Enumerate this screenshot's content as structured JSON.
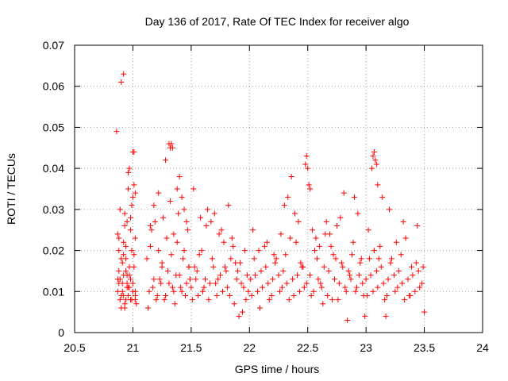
{
  "chart_data": {
    "type": "scatter",
    "title": "Day 136 of 2017, Rate Of TEC Index for receiver algo",
    "xlabel": "GPS time / hours",
    "ylabel": "ROTI / TECUs",
    "xlim": [
      20.5,
      24
    ],
    "ylim": [
      0,
      0.07
    ],
    "x_ticks": [
      "20.5",
      "21",
      "21.5",
      "22",
      "22.5",
      "23",
      "23.5",
      "24"
    ],
    "y_ticks": [
      "0",
      "0.01",
      "0.02",
      "0.03",
      "0.04",
      "0.05",
      "0.06",
      "0.07"
    ],
    "grid": true,
    "marker": "+",
    "color": "#ff0000",
    "series": [
      {
        "x": [
          20.88,
          20.89,
          20.9,
          20.91,
          20.92,
          20.93,
          20.94,
          20.95,
          20.96,
          20.97,
          20.98,
          20.99,
          21.0,
          21.01,
          21.02,
          21.03,
          20.87,
          20.88,
          20.89,
          20.9,
          20.91,
          20.92,
          20.93,
          20.94,
          20.95,
          20.96,
          20.97,
          20.98,
          20.99,
          21.0,
          21.01,
          21.02,
          20.86,
          20.88,
          20.9,
          20.92,
          20.94,
          20.96,
          20.98,
          21.0,
          21.02,
          20.87,
          20.89,
          20.91,
          20.93,
          20.95,
          20.97,
          20.99,
          21.01,
          20.87,
          20.88,
          20.92,
          20.93,
          20.94,
          20.96,
          20.97,
          21.01,
          21.02,
          20.9,
          20.92,
          20.95,
          20.98,
          21.0,
          21.02,
          21.12,
          21.14,
          21.16,
          21.18,
          21.2,
          21.22,
          21.24,
          21.26,
          21.28,
          21.3,
          21.32,
          21.34,
          21.36,
          21.38,
          21.4,
          21.42,
          21.44,
          21.46,
          21.48,
          21.13,
          21.15,
          21.17,
          21.19,
          21.21,
          21.23,
          21.25,
          21.27,
          21.29,
          21.31,
          21.33,
          21.35,
          21.37,
          21.39,
          21.41,
          21.43,
          21.45,
          21.47,
          21.49,
          21.15,
          21.18,
          21.22,
          21.25,
          21.28,
          21.31,
          21.32,
          21.33,
          21.34,
          21.35,
          21.38,
          21.4,
          21.42,
          21.44,
          21.46,
          21.48,
          21.5,
          21.53,
          21.56,
          21.59,
          21.62,
          21.65,
          21.68,
          21.71,
          21.74,
          21.77,
          21.8,
          21.83,
          21.86,
          21.89,
          21.92,
          21.95,
          21.98,
          21.51,
          21.54,
          21.57,
          21.6,
          21.63,
          21.66,
          21.69,
          21.72,
          21.75,
          21.78,
          21.81,
          21.84,
          21.87,
          21.9,
          21.93,
          21.96,
          21.99,
          21.52,
          21.58,
          21.64,
          21.7,
          21.76,
          21.82,
          21.88,
          21.94,
          21.55,
          21.61,
          21.67,
          21.73,
          21.79,
          21.85,
          21.91,
          21.97,
          22.01,
          22.04,
          22.07,
          22.1,
          22.13,
          22.16,
          22.19,
          22.22,
          22.25,
          22.28,
          22.31,
          22.34,
          22.37,
          22.4,
          22.43,
          22.46,
          22.49,
          22.02,
          22.05,
          22.08,
          22.11,
          22.14,
          22.17,
          22.2,
          22.23,
          22.26,
          22.29,
          22.32,
          22.35,
          22.38,
          22.41,
          22.44,
          22.47,
          22.03,
          22.09,
          22.15,
          22.21,
          22.27,
          22.33,
          22.39,
          22.45,
          22.48,
          22.49,
          22.5,
          22.51,
          22.52,
          22.3,
          22.36,
          22.42,
          22.52,
          22.55,
          22.58,
          22.61,
          22.64,
          22.67,
          22.7,
          22.73,
          22.76,
          22.79,
          22.82,
          22.85,
          22.88,
          22.91,
          22.94,
          22.97,
          22.53,
          22.56,
          22.59,
          22.62,
          22.65,
          22.68,
          22.71,
          22.74,
          22.77,
          22.8,
          22.83,
          22.86,
          22.89,
          22.92,
          22.95,
          22.98,
          22.54,
          22.6,
          22.66,
          22.72,
          22.78,
          22.84,
          22.9,
          22.96,
          22.57,
          22.63,
          22.69,
          22.75,
          22.81,
          22.87,
          22.93,
          22.99,
          23.0,
          23.03,
          23.06,
          23.09,
          23.12,
          23.15,
          23.18,
          23.21,
          23.24,
          23.27,
          23.3,
          23.33,
          23.36,
          23.39,
          23.42,
          23.45,
          23.48,
          23.01,
          23.04,
          23.07,
          23.1,
          23.13,
          23.16,
          23.19,
          23.22,
          23.25,
          23.28,
          23.31,
          23.34,
          23.37,
          23.4,
          23.43,
          23.46,
          23.49,
          23.05,
          23.06,
          23.07,
          23.08,
          23.09,
          23.1,
          23.02,
          23.14,
          23.2,
          23.26,
          23.32,
          23.38,
          23.44,
          23.5,
          23.11,
          23.17
        ],
        "y": [
          0.012,
          0.008,
          0.018,
          0.01,
          0.014,
          0.007,
          0.021,
          0.011,
          0.009,
          0.016,
          0.013,
          0.008,
          0.012,
          0.019,
          0.01,
          0.007,
          0.024,
          0.015,
          0.03,
          0.009,
          0.012,
          0.022,
          0.006,
          0.018,
          0.027,
          0.011,
          0.014,
          0.008,
          0.02,
          0.033,
          0.016,
          0.009,
          0.049,
          0.023,
          0.061,
          0.063,
          0.008,
          0.039,
          0.025,
          0.044,
          0.034,
          0.01,
          0.013,
          0.017,
          0.029,
          0.012,
          0.04,
          0.031,
          0.044,
          0.013,
          0.02,
          0.009,
          0.026,
          0.015,
          0.035,
          0.011,
          0.036,
          0.023,
          0.006,
          0.019,
          0.014,
          0.028,
          0.01,
          0.008,
          0.018,
          0.01,
          0.025,
          0.013,
          0.008,
          0.02,
          0.012,
          0.028,
          0.009,
          0.015,
          0.032,
          0.011,
          0.007,
          0.022,
          0.014,
          0.01,
          0.03,
          0.012,
          0.016,
          0.006,
          0.021,
          0.011,
          0.027,
          0.009,
          0.013,
          0.017,
          0.008,
          0.023,
          0.012,
          0.019,
          0.01,
          0.014,
          0.029,
          0.011,
          0.018,
          0.009,
          0.025,
          0.013,
          0.026,
          0.031,
          0.034,
          0.016,
          0.042,
          0.046,
          0.045,
          0.046,
          0.045,
          0.024,
          0.035,
          0.038,
          0.033,
          0.02,
          0.027,
          0.016,
          0.011,
          0.016,
          0.009,
          0.02,
          0.013,
          0.008,
          0.018,
          0.012,
          0.024,
          0.01,
          0.015,
          0.009,
          0.021,
          0.013,
          0.017,
          0.011,
          0.014,
          0.008,
          0.013,
          0.019,
          0.01,
          0.026,
          0.012,
          0.016,
          0.009,
          0.014,
          0.022,
          0.011,
          0.018,
          0.007,
          0.015,
          0.012,
          0.02,
          0.01,
          0.035,
          0.028,
          0.03,
          0.029,
          0.025,
          0.031,
          0.017,
          0.005,
          0.015,
          0.011,
          0.027,
          0.013,
          0.016,
          0.023,
          0.004,
          0.008,
          0.013,
          0.018,
          0.01,
          0.015,
          0.021,
          0.012,
          0.009,
          0.017,
          0.014,
          0.011,
          0.019,
          0.008,
          0.013,
          0.022,
          0.01,
          0.016,
          0.012,
          0.009,
          0.014,
          0.02,
          0.011,
          0.016,
          0.008,
          0.013,
          0.018,
          0.01,
          0.015,
          0.012,
          0.023,
          0.009,
          0.014,
          0.017,
          0.011,
          0.025,
          0.006,
          0.022,
          0.019,
          0.024,
          0.033,
          0.029,
          0.016,
          0.041,
          0.043,
          0.04,
          0.036,
          0.035,
          0.031,
          0.038,
          0.027,
          0.014,
          0.01,
          0.018,
          0.012,
          0.016,
          0.009,
          0.021,
          0.013,
          0.008,
          0.017,
          0.011,
          0.015,
          0.019,
          0.01,
          0.014,
          0.012,
          0.009,
          0.02,
          0.013,
          0.011,
          0.024,
          0.015,
          0.008,
          0.018,
          0.012,
          0.016,
          0.01,
          0.014,
          0.022,
          0.011,
          0.017,
          0.009,
          0.025,
          0.021,
          0.027,
          0.019,
          0.028,
          0.003,
          0.033,
          0.018,
          0.023,
          0.007,
          0.024,
          0.026,
          0.034,
          0.013,
          0.029,
          0.004,
          0.013,
          0.018,
          0.01,
          0.015,
          0.021,
          0.012,
          0.009,
          0.017,
          0.014,
          0.011,
          0.019,
          0.008,
          0.013,
          0.016,
          0.01,
          0.015,
          0.012,
          0.009,
          0.014,
          0.02,
          0.011,
          0.016,
          0.008,
          0.013,
          0.018,
          0.01,
          0.015,
          0.012,
          0.023,
          0.009,
          0.014,
          0.017,
          0.011,
          0.016,
          0.04,
          0.043,
          0.044,
          0.042,
          0.041,
          0.036,
          0.025,
          0.033,
          0.03,
          0.022,
          0.027,
          0.009,
          0.026,
          0.005,
          0.018,
          0.004
        ]
      }
    ]
  }
}
